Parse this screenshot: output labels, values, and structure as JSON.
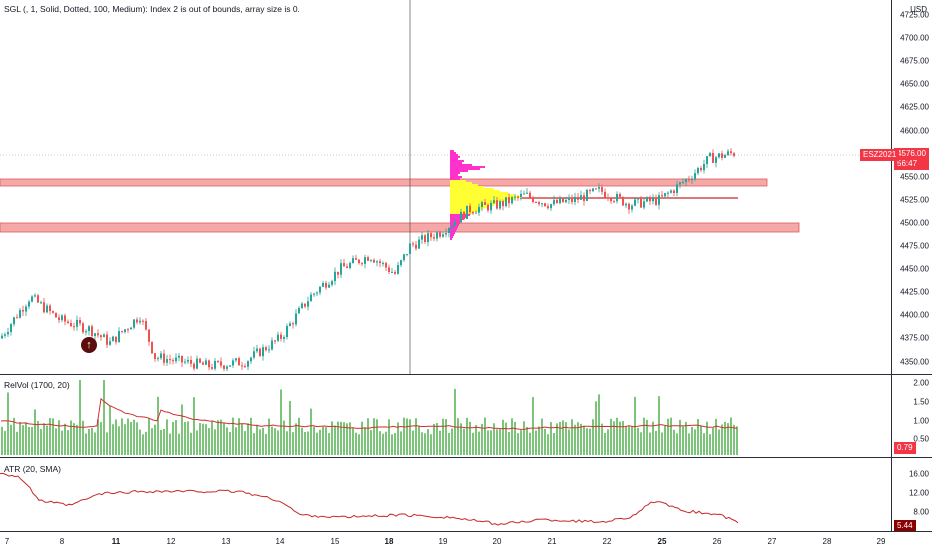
{
  "header": {
    "indicator_title": "SGL (, 1, Solid, Dotted, 100, Medium): Index 2 is out of bounds, array size is 0.",
    "currency": "USD"
  },
  "price_axis": {
    "ticks": [
      "4725.00",
      "4700.00",
      "4675.00",
      "4650.00",
      "4625.00",
      "4600.00",
      "4575.00",
      "4550.00",
      "4525.00",
      "4500.00",
      "4475.00",
      "4450.00",
      "4425.00",
      "4400.00",
      "4375.00",
      "4350.00"
    ],
    "last_price": "4576.00",
    "countdown": "56:47",
    "symbol_badge": "ESZ2021",
    "accent_color": "#f23645"
  },
  "relvol": {
    "title": "RelVol (1700, 20)",
    "ticks": [
      "2.00",
      "1.50",
      "1.00",
      "0.50"
    ],
    "current_value": "0.79",
    "bar_color": "#7cc47a",
    "line_color": "#d32f2f"
  },
  "atr": {
    "title": "ATR (20, SMA)",
    "ticks": [
      "16.00",
      "12.00",
      "8.00"
    ],
    "current_value": "5.44",
    "line_color": "#c62828"
  },
  "time_axis": {
    "labels": [
      {
        "text": "7",
        "bold": false
      },
      {
        "text": "8",
        "bold": false
      },
      {
        "text": "11",
        "bold": true
      },
      {
        "text": "12",
        "bold": false
      },
      {
        "text": "13",
        "bold": false
      },
      {
        "text": "14",
        "bold": false
      },
      {
        "text": "15",
        "bold": false
      },
      {
        "text": "18",
        "bold": true
      },
      {
        "text": "19",
        "bold": false
      },
      {
        "text": "20",
        "bold": false
      },
      {
        "text": "21",
        "bold": false
      },
      {
        "text": "22",
        "bold": false
      },
      {
        "text": "25",
        "bold": true
      },
      {
        "text": "26",
        "bold": false
      },
      {
        "text": "27",
        "bold": false
      },
      {
        "text": "28",
        "bold": false
      },
      {
        "text": "29",
        "bold": false
      }
    ]
  },
  "zones": {
    "upper_zone": "resistance-zone",
    "lower_zone": "support-zone",
    "zone_color": "#f28b8b"
  },
  "volume_profile": {
    "value_area_color": "#ffff33",
    "outside_color": "#ff33cc"
  },
  "icons": {
    "event_marker": "up-arrow-icon"
  }
}
